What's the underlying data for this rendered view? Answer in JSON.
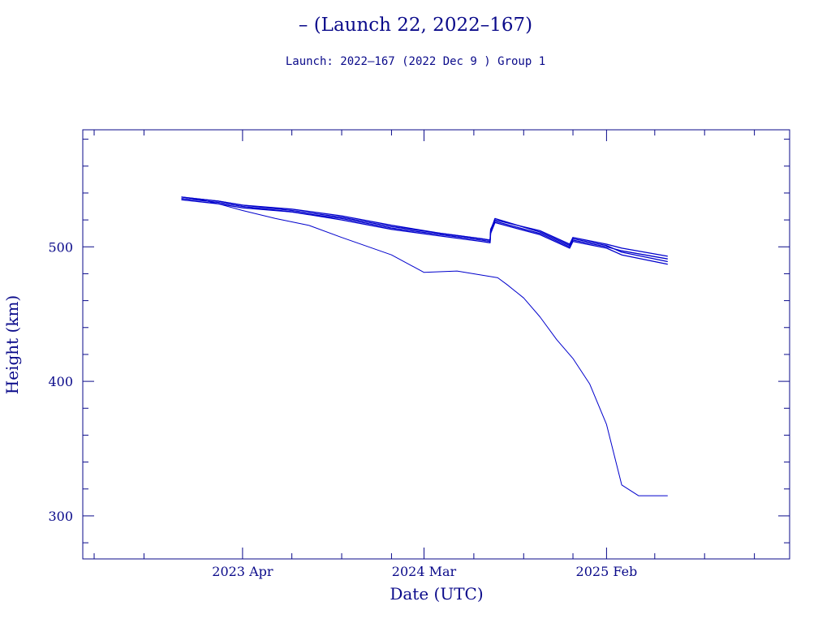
{
  "chart_data": {
    "type": "line",
    "title": "– (Launch 22, 2022–167)",
    "subtitle": "Launch: 2022–167  (2022 Dec  9 )  Group 1",
    "xlabel": "Date (UTC)",
    "ylabel": "Height (km)",
    "x_unit": "date",
    "xlim": [
      "2022-06-10",
      "2026-01-05"
    ],
    "ylim": [
      268,
      587
    ],
    "x_tick_labels": [
      {
        "date": "2023-04-01",
        "label": "2023 Apr"
      },
      {
        "date": "2024-03-01",
        "label": "2024 Mar"
      },
      {
        "date": "2025-02-01",
        "label": "2025 Feb"
      }
    ],
    "y_ticks": [
      300,
      400,
      500
    ],
    "grid": false,
    "colors": {
      "line": "#0000cc",
      "frame": "#0a0a8a"
    },
    "series": [
      {
        "x": [
          "2022-12-09",
          "2023-01-15",
          "2023-02-15",
          "2023-04-01",
          "2023-06-01",
          "2023-08-01",
          "2023-10-01",
          "2024-01-01",
          "2024-03-01",
          "2024-05-01",
          "2024-07-15",
          "2024-08-01",
          "2024-09-01",
          "2024-10-01",
          "2024-11-01",
          "2024-12-01",
          "2025-01-01",
          "2025-02-01",
          "2025-03-01",
          "2025-04-01",
          "2025-05-01",
          "2025-05-25"
        ],
        "y": [
          537,
          535,
          532,
          527,
          521,
          516,
          507,
          494,
          481,
          482,
          477,
          472,
          462,
          448,
          431,
          417,
          398,
          368,
          323,
          315,
          315,
          315
        ]
      },
      {
        "x": [
          "2022-12-09",
          "2023-02-15",
          "2023-04-01",
          "2023-07-01",
          "2023-10-01",
          "2024-01-01",
          "2024-04-01",
          "2024-06-15",
          "2024-07-01",
          "2024-07-02",
          "2024-07-10",
          "2024-10-01",
          "2024-11-25",
          "2024-12-01",
          "2025-02-01",
          "2025-03-01",
          "2025-05-25"
        ],
        "y": [
          537,
          534,
          531,
          527,
          522,
          515,
          510,
          506,
          505,
          513,
          520,
          512,
          502,
          507,
          502,
          499,
          493
        ]
      },
      {
        "x": [
          "2022-12-09",
          "2023-02-15",
          "2023-04-01",
          "2023-07-01",
          "2023-10-01",
          "2024-01-01",
          "2024-04-01",
          "2024-06-15",
          "2024-07-01",
          "2024-07-02",
          "2024-07-10",
          "2024-10-01",
          "2024-11-25",
          "2024-12-01",
          "2025-02-01",
          "2025-03-01",
          "2025-05-25"
        ],
        "y": [
          536,
          533,
          530,
          526,
          521,
          514,
          509,
          505,
          504,
          511,
          519,
          510,
          500,
          505,
          500,
          497,
          491
        ]
      },
      {
        "x": [
          "2022-12-09",
          "2023-02-15",
          "2023-04-01",
          "2023-07-01",
          "2023-10-01",
          "2024-01-01",
          "2024-04-01",
          "2024-06-15",
          "2024-07-01",
          "2024-07-02",
          "2024-07-10",
          "2024-10-01",
          "2024-11-25",
          "2024-12-01",
          "2025-02-01",
          "2025-03-01",
          "2025-05-25"
        ],
        "y": [
          537,
          534,
          531,
          528,
          523,
          516,
          510,
          506,
          505,
          512,
          521,
          511,
          501,
          506,
          501,
          496,
          489
        ]
      },
      {
        "x": [
          "2022-12-09",
          "2023-02-15",
          "2023-04-01",
          "2023-07-01",
          "2023-10-01",
          "2024-01-01",
          "2024-04-01",
          "2024-06-15",
          "2024-07-01",
          "2024-07-02",
          "2024-07-10",
          "2024-10-01",
          "2024-11-25",
          "2024-12-01",
          "2025-02-01",
          "2025-03-01",
          "2025-05-25"
        ],
        "y": [
          535,
          532,
          529,
          526,
          520,
          513,
          508,
          504,
          503,
          510,
          518,
          509,
          499,
          504,
          499,
          494,
          487
        ]
      }
    ]
  }
}
